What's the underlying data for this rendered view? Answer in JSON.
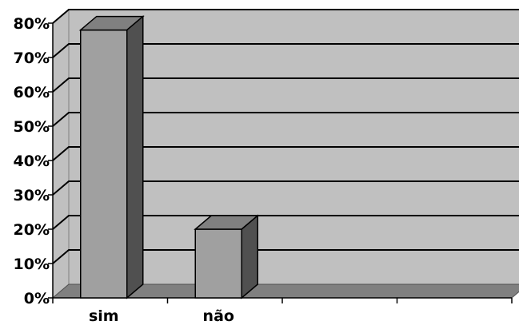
{
  "chart_data": {
    "type": "bar",
    "style": "3d",
    "categories": [
      "sim",
      "não"
    ],
    "values": [
      78,
      20
    ],
    "ylim": [
      0,
      80
    ],
    "yticks": [
      "0%",
      "10%",
      "20%",
      "30%",
      "40%",
      "50%",
      "60%",
      "70%",
      "80%"
    ],
    "grid": true,
    "legend": "none",
    "colors": {
      "wall": "#c0c0c0",
      "floor": "#808080",
      "bar_front": "#a0a0a0",
      "bar_top": "#808080",
      "bar_side": "#505050",
      "gridline": "#000000"
    }
  }
}
